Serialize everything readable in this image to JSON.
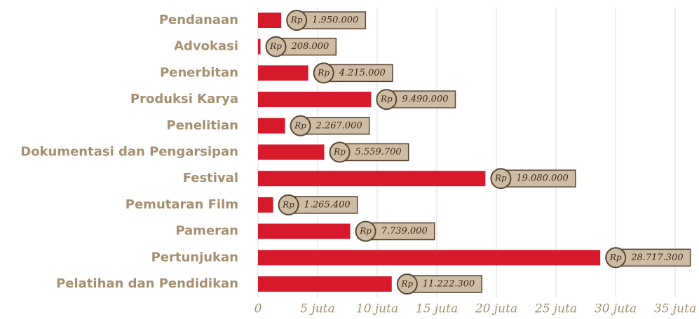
{
  "chart_data": {
    "type": "bar",
    "orientation": "horizontal",
    "categories": [
      "Pendanaan",
      "Advokasi",
      "Penerbitan",
      "Produksi Karya",
      "Penelitian",
      "Dokumentasi dan Pengarsipan",
      "Festival",
      "Pemutaran Film",
      "Pameran",
      "Pertunjukan",
      "Pelatihan dan Pendidikan"
    ],
    "values": [
      1950000,
      208000,
      4215000,
      9490000,
      2267000,
      5559700,
      19080000,
      1265400,
      7739000,
      28717300,
      11222300
    ],
    "value_labels": [
      "1.950.000",
      "208.000",
      "4.215.000",
      "9.490.000",
      "2.267.000",
      "5.559.700",
      "19.080.000",
      "1.265.400",
      "7.739.000",
      "28.717.300",
      "11.222.300"
    ],
    "currency_symbol": "Rp",
    "color": "#d6192b",
    "xlim": [
      0,
      35000000
    ],
    "xticks": [
      0,
      {
        "value": 5000000,
        "label": "5 juta"
      },
      {
        "value": 10000000,
        "label": "10 juta"
      },
      {
        "value": 15000000,
        "label": "15 juta"
      },
      {
        "value": 20000000,
        "label": "20 juta"
      },
      {
        "value": 25000000,
        "label": "25 juta"
      },
      {
        "value": 30000000,
        "label": "30 juta"
      },
      {
        "value": 35000000,
        "label": "35 juta"
      }
    ],
    "grid": true
  }
}
